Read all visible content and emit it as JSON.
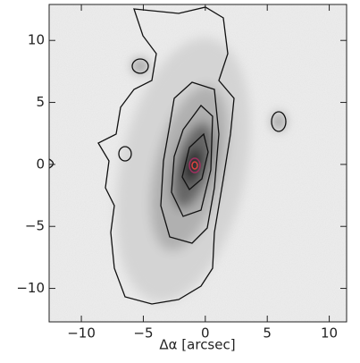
{
  "chart_data": {
    "type": "image",
    "xlabel": "Δα [arcsec]",
    "xlim": [
      -12.6,
      11.4
    ],
    "ylim": [
      -12.7,
      12.9
    ],
    "xticks": [
      {
        "value": -10,
        "label": "−10"
      },
      {
        "value": -5,
        "label": "−5"
      },
      0,
      5,
      10
    ],
    "yticks": [
      {
        "value": -10,
        "label": "−10"
      },
      {
        "value": -5,
        "label": "−5"
      },
      0,
      5,
      10
    ],
    "colormap": "gray_r"
  }
}
